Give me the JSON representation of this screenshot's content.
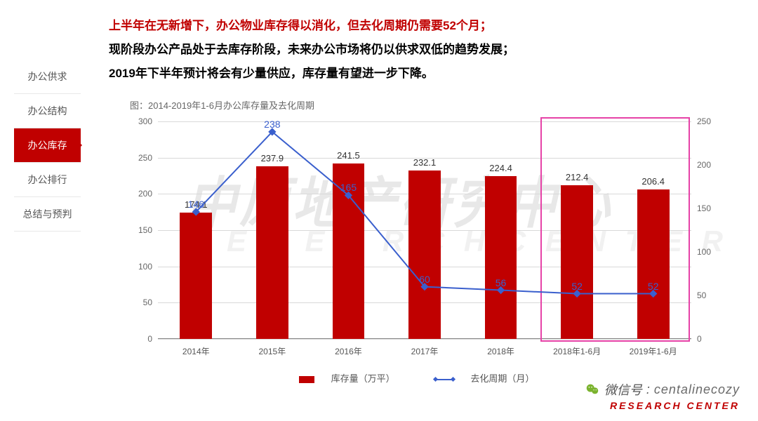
{
  "sidebar": {
    "items": [
      {
        "label": "办公供求"
      },
      {
        "label": "办公结构"
      },
      {
        "label": "办公库存"
      },
      {
        "label": "办公排行"
      },
      {
        "label": "总结与预判"
      }
    ],
    "active_index": 2
  },
  "headline": {
    "line1_red": "上半年在无新增下，办公物业库存得以消化，但去化周期仍需要52个月；",
    "line2": "现阶段办公产品处于去库存阶段，未来办公市场将仍以供求双低的趋势发展；",
    "line3": "2019年下半年预计将会有少量供应，库存量有望进一步下降。"
  },
  "chart": {
    "title": "图：2014-2019年1-6月办公库存量及去化周期",
    "type": "bar+line",
    "categories": [
      "2014年",
      "2015年",
      "2016年",
      "2017年",
      "2018年",
      "2018年1-6月",
      "2019年1-6月"
    ],
    "bars": {
      "label": "库存量（万平）",
      "values": [
        174.1,
        237.9,
        241.5,
        232.1,
        224.4,
        212.4,
        206.4
      ],
      "color": "#c00000",
      "ylim": [
        0,
        300
      ],
      "ytick_step": 50,
      "bar_width_frac": 0.42
    },
    "line": {
      "label": "去化周期（月）",
      "values": [
        146,
        238,
        165,
        60,
        56,
        52,
        52
      ],
      "color": "#3a5fcd",
      "ylim": [
        0,
        250
      ],
      "ytick_step": 50,
      "marker": "diamond"
    },
    "axis_color": "#888888",
    "grid_color": "#d9d9d9",
    "label_fontsize": 12,
    "background_color": "#ffffff",
    "highlight_range": [
      5,
      6
    ],
    "highlight_color": "#e642a7"
  },
  "watermark": {
    "main": "中原地产研究中心",
    "sub": "R  E  S  E  A  R  C  H      C  E  N  T  E  R"
  },
  "footer": {
    "wechat_prefix": "微信号",
    "wechat_id": "centalinecozy",
    "brand": "RESEARCH CENTER"
  }
}
